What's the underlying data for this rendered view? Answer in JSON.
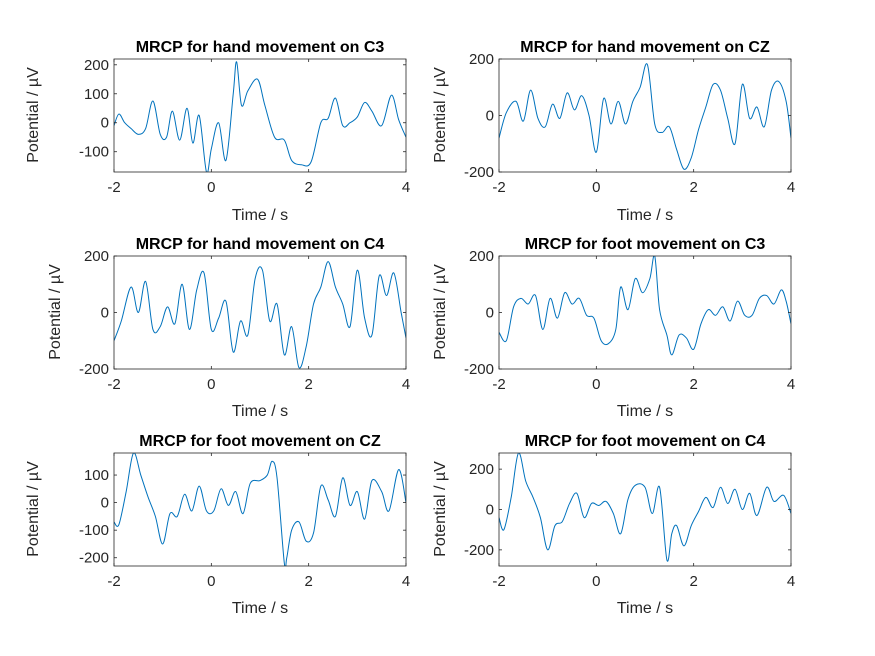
{
  "figure": {
    "background": "#ffffff",
    "line_color": "#0072bd",
    "axis_color": "#262626"
  },
  "chart_data": [
    {
      "type": "line",
      "title": "MRCP for hand movement on C3",
      "xlabel": "Time / s",
      "ylabel": "Potential / µV",
      "xlim": [
        -2,
        4
      ],
      "ylim": [
        -170,
        220
      ],
      "xticks": [
        -2,
        0,
        2,
        4
      ],
      "yticks": [
        -100,
        0,
        100,
        200
      ],
      "grid": false,
      "series": [
        {
          "x": [
            -2,
            -1.9,
            -1.78,
            -1.65,
            -1.5,
            -1.35,
            -1.2,
            -1.05,
            -0.92,
            -0.8,
            -0.65,
            -0.5,
            -0.38,
            -0.25,
            -0.1,
            0,
            0.15,
            0.3,
            0.45,
            0.52,
            0.62,
            0.75,
            0.95,
            1.1,
            1.3,
            1.5,
            1.65,
            1.85,
            2.05,
            2.25,
            2.4,
            2.55,
            2.7,
            2.85,
            3,
            3.15,
            3.3,
            3.5,
            3.7,
            3.85,
            4
          ],
          "y": [
            -10,
            30,
            0,
            -20,
            -40,
            -20,
            75,
            -40,
            -50,
            40,
            -60,
            50,
            -70,
            25,
            -170,
            -90,
            0,
            -130,
            100,
            210,
            60,
            110,
            150,
            60,
            -50,
            -60,
            -130,
            -145,
            -135,
            0,
            15,
            85,
            -10,
            0,
            20,
            70,
            40,
            -10,
            95,
            10,
            -50
          ]
        }
      ]
    },
    {
      "type": "line",
      "title": "MRCP for hand movement on CZ",
      "xlabel": "Time / s",
      "ylabel": "Potential / µV",
      "xlim": [
        -2,
        4
      ],
      "ylim": [
        -200,
        200
      ],
      "xticks": [
        -2,
        0,
        2,
        4
      ],
      "yticks": [
        -200,
        0,
        200
      ],
      "grid": false,
      "series": [
        {
          "x": [
            -2,
            -1.85,
            -1.65,
            -1.5,
            -1.35,
            -1.2,
            -1.05,
            -0.9,
            -0.75,
            -0.6,
            -0.45,
            -0.3,
            -0.15,
            0,
            0.15,
            0.3,
            0.45,
            0.6,
            0.75,
            0.9,
            1.05,
            1.2,
            1.35,
            1.5,
            1.65,
            1.8,
            1.95,
            2.1,
            2.25,
            2.4,
            2.55,
            2.7,
            2.85,
            3,
            3.15,
            3.3,
            3.45,
            3.6,
            3.75,
            3.9,
            4
          ],
          "y": [
            -80,
            10,
            50,
            -20,
            90,
            -10,
            -40,
            40,
            -10,
            80,
            20,
            70,
            0,
            -130,
            60,
            -30,
            50,
            -30,
            50,
            100,
            180,
            -30,
            -60,
            -40,
            -120,
            -190,
            -150,
            -50,
            30,
            110,
            90,
            -10,
            -100,
            110,
            -10,
            30,
            -40,
            90,
            120,
            50,
            -80
          ]
        }
      ]
    },
    {
      "type": "line",
      "title": "MRCP for hand movement on C4",
      "xlabel": "Time / s",
      "ylabel": "Potential / µV",
      "xlim": [
        -2,
        4
      ],
      "ylim": [
        -200,
        200
      ],
      "xticks": [
        -2,
        0,
        2,
        4
      ],
      "yticks": [
        -200,
        0,
        200
      ],
      "grid": false,
      "series": [
        {
          "x": [
            -2,
            -1.85,
            -1.65,
            -1.5,
            -1.35,
            -1.2,
            -1.05,
            -0.9,
            -0.75,
            -0.6,
            -0.45,
            -0.3,
            -0.15,
            0,
            0.15,
            0.3,
            0.45,
            0.6,
            0.75,
            0.9,
            1.05,
            1.2,
            1.35,
            1.5,
            1.65,
            1.8,
            1.95,
            2.1,
            2.25,
            2.4,
            2.55,
            2.7,
            2.85,
            3,
            3.15,
            3.3,
            3.45,
            3.6,
            3.75,
            3.9,
            4
          ],
          "y": [
            -100,
            -30,
            90,
            0,
            110,
            -60,
            -50,
            20,
            -40,
            100,
            -60,
            80,
            140,
            -60,
            -20,
            40,
            -140,
            -30,
            -80,
            120,
            150,
            -30,
            30,
            -150,
            -50,
            -195,
            -120,
            30,
            90,
            180,
            90,
            30,
            -50,
            150,
            -20,
            -80,
            130,
            60,
            140,
            0,
            -90
          ]
        }
      ]
    },
    {
      "type": "line",
      "title": "MRCP for foot movement on C3",
      "xlabel": "Time / s",
      "ylabel": "Potential / µV",
      "xlim": [
        -2,
        4
      ],
      "ylim": [
        -200,
        200
      ],
      "xticks": [
        -2,
        0,
        2,
        4
      ],
      "yticks": [
        -200,
        0,
        200
      ],
      "grid": false,
      "series": [
        {
          "x": [
            -2,
            -1.85,
            -1.7,
            -1.55,
            -1.4,
            -1.25,
            -1.1,
            -0.95,
            -0.8,
            -0.65,
            -0.5,
            -0.35,
            -0.2,
            -0.05,
            0.1,
            0.25,
            0.4,
            0.5,
            0.65,
            0.8,
            0.95,
            1.1,
            1.2,
            1.3,
            1.45,
            1.55,
            1.7,
            1.85,
            2,
            2.15,
            2.3,
            2.45,
            2.6,
            2.75,
            2.9,
            3.05,
            3.2,
            3.35,
            3.5,
            3.65,
            3.8,
            3.9,
            4
          ],
          "y": [
            -70,
            -100,
            20,
            50,
            30,
            60,
            -60,
            50,
            -20,
            70,
            30,
            50,
            -10,
            -20,
            -100,
            -110,
            -60,
            90,
            10,
            120,
            70,
            120,
            200,
            10,
            -80,
            -150,
            -80,
            -90,
            -130,
            -40,
            10,
            -10,
            20,
            -30,
            40,
            -10,
            -10,
            50,
            60,
            30,
            80,
            40,
            -40
          ]
        }
      ]
    },
    {
      "type": "line",
      "title": "MRCP for foot movement on CZ",
      "xlabel": "Time / s",
      "ylabel": "Potential / µV",
      "xlim": [
        -2,
        4
      ],
      "ylim": [
        -230,
        180
      ],
      "xticks": [
        -2,
        0,
        2,
        4
      ],
      "yticks": [
        -200,
        -100,
        0,
        100
      ],
      "grid": false,
      "series": [
        {
          "x": [
            -2,
            -1.9,
            -1.75,
            -1.6,
            -1.45,
            -1.3,
            -1.15,
            -1,
            -0.85,
            -0.7,
            -0.55,
            -0.4,
            -0.25,
            -0.1,
            0.05,
            0.2,
            0.35,
            0.5,
            0.65,
            0.8,
            1,
            1.15,
            1.25,
            1.35,
            1.5,
            1.55,
            1.65,
            1.8,
            1.95,
            2.1,
            2.25,
            2.4,
            2.55,
            2.7,
            2.85,
            3,
            3.15,
            3.3,
            3.5,
            3.65,
            3.85,
            4
          ],
          "y": [
            -70,
            -80,
            40,
            180,
            100,
            20,
            -50,
            -150,
            -40,
            -50,
            30,
            -30,
            60,
            -30,
            -30,
            50,
            -10,
            40,
            -40,
            70,
            80,
            100,
            150,
            90,
            -220,
            -200,
            -100,
            -70,
            -140,
            -110,
            60,
            10,
            -50,
            90,
            -10,
            40,
            -60,
            80,
            40,
            -30,
            120,
            0
          ]
        }
      ]
    },
    {
      "type": "line",
      "title": "MRCP for foot movement on C4",
      "xlabel": "Time / s",
      "ylabel": "Potential / µV",
      "xlim": [
        -2,
        4
      ],
      "ylim": [
        -280,
        280
      ],
      "xticks": [
        -2,
        0,
        2,
        4
      ],
      "yticks": [
        -200,
        0,
        200
      ],
      "grid": false,
      "series": [
        {
          "x": [
            -2,
            -1.9,
            -1.75,
            -1.6,
            -1.45,
            -1.3,
            -1.15,
            -1,
            -0.85,
            -0.7,
            -0.55,
            -0.4,
            -0.25,
            -0.1,
            0.05,
            0.2,
            0.35,
            0.5,
            0.65,
            0.8,
            1,
            1.15,
            1.3,
            1.45,
            1.55,
            1.65,
            1.8,
            1.95,
            2.1,
            2.25,
            2.4,
            2.55,
            2.7,
            2.85,
            3,
            3.15,
            3.3,
            3.5,
            3.65,
            3.85,
            4
          ],
          "y": [
            -40,
            -100,
            60,
            280,
            140,
            60,
            -40,
            -200,
            -80,
            -60,
            30,
            80,
            -40,
            30,
            20,
            40,
            -20,
            -120,
            50,
            120,
            110,
            -20,
            110,
            -250,
            -120,
            -80,
            -180,
            -80,
            -10,
            60,
            10,
            110,
            30,
            100,
            0,
            80,
            -30,
            110,
            40,
            70,
            -20
          ]
        }
      ]
    }
  ]
}
